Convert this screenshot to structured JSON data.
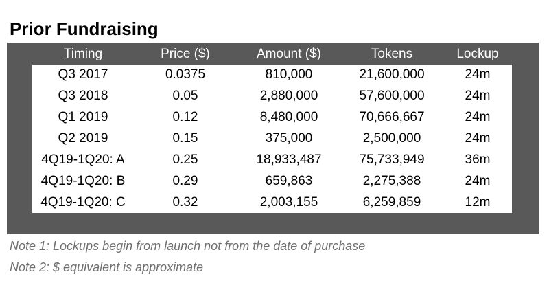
{
  "title": "Prior Fundraising",
  "table": {
    "headers": [
      "Timing",
      "Price ($)",
      "Amount ($)",
      "Tokens",
      "Lockup"
    ],
    "rows": [
      [
        "Q3 2017",
        "0.0375",
        "810,000",
        "21,600,000",
        "24m"
      ],
      [
        "Q3 2018",
        "0.05",
        "2,880,000",
        "57,600,000",
        "24m"
      ],
      [
        "Q1 2019",
        "0.12",
        "8,480,000",
        "70,666,667",
        "24m"
      ],
      [
        "Q2 2019",
        "0.15",
        "375,000",
        "2,500,000",
        "24m"
      ],
      [
        "4Q19-1Q20: A",
        "0.25",
        "18,933,487",
        "75,733,949",
        "36m"
      ],
      [
        "4Q19-1Q20: B",
        "0.29",
        "659,863",
        "2,275,388",
        "24m"
      ],
      [
        "4Q19-1Q20: C",
        "0.32",
        "2,003,155",
        "6,259,859",
        "12m"
      ]
    ]
  },
  "notes": [
    "Note 1: Lockups begin from launch not from the date of purchase",
    "Note 2: $ equivalent is approximate"
  ],
  "colors": {
    "panel": "#595959",
    "header_text": "#ffffff",
    "body_text": "#000000",
    "note_text": "#707070"
  }
}
